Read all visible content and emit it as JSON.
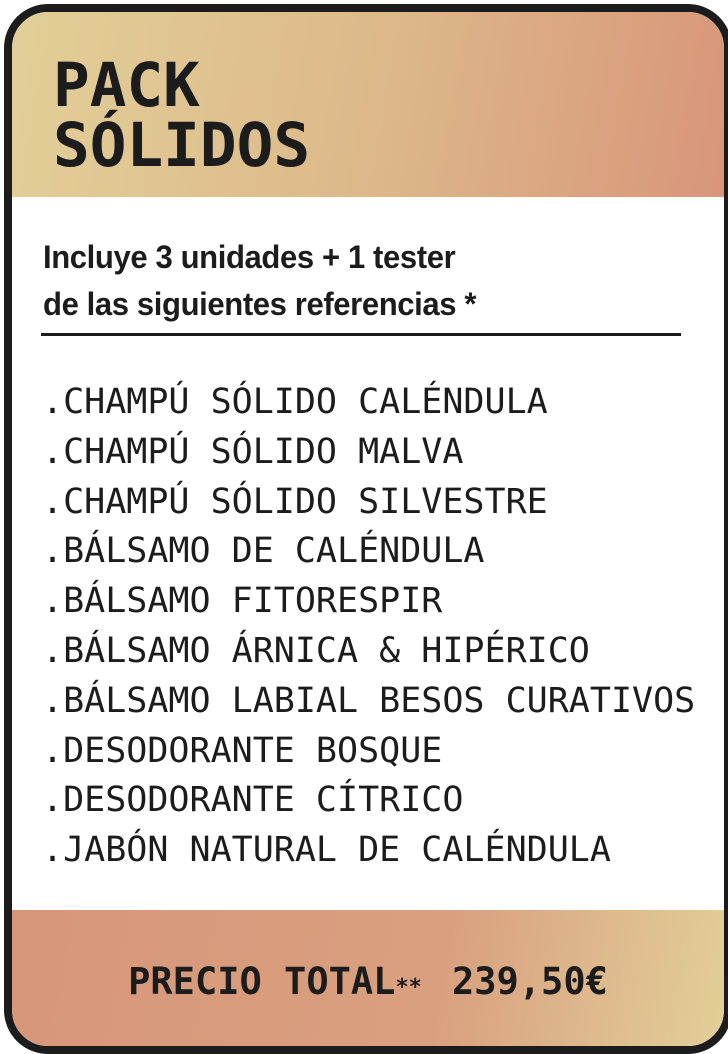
{
  "title": {
    "line1": "PACK",
    "line2": "SÓLIDOS"
  },
  "intro": {
    "line1": "Incluye 3 unidades + 1 tester",
    "line2": "de las siguientes referencias *"
  },
  "items": [
    ".CHAMPÚ SÓLIDO CALÉNDULA",
    ".CHAMPÚ SÓLIDO MALVA",
    ".CHAMPÚ SÓLIDO SILVESTRE",
    ".BÁLSAMO DE CALÉNDULA",
    ".BÁLSAMO FITORESPIR",
    ".BÁLSAMO ÁRNICA & HIPÉRICO",
    ".BÁLSAMO LABIAL BESOS CURATIVOS",
    ".DESODORANTE BOSQUE",
    ".DESODORANTE CÍTRICO",
    ".JABÓN NATURAL DE CALÉNDULA"
  ],
  "footer": {
    "label": "PRECIO TOTAL",
    "asterisks": "**",
    "price": "239,50€"
  },
  "colors": {
    "ink": "#1c1c1c",
    "gold": "#e2cf98",
    "terracotta": "#d8967a"
  }
}
